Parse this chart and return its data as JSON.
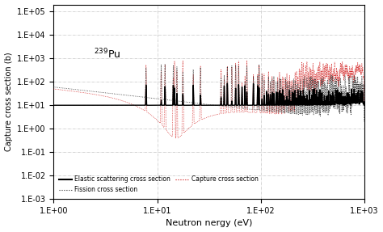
{
  "title_text": "$^{239}$Pu",
  "xlabel": "Neutron nergy (eV)",
  "ylabel": "Capture cross section (b)",
  "xlim": [
    1.0,
    1000.0
  ],
  "ylim": [
    0.001,
    200000.0
  ],
  "yticks": [
    0.001,
    0.01,
    0.1,
    1.0,
    10.0,
    100.0,
    1000.0,
    10000.0,
    100000.0
  ],
  "ytick_labels": [
    "1.E-03",
    "1.E-02",
    "1.E-01",
    "1.E+00",
    "1.E+01",
    "1.E+02",
    "1.E+03",
    "1.E+04",
    "1.E+05"
  ],
  "xticks": [
    1.0,
    10.0,
    100.0,
    1000.0
  ],
  "xtick_labels": [
    "1.E+00",
    "1.E+01",
    "1.E+02",
    "1.E+03"
  ],
  "elastic_color": "#000000",
  "fission_color": "#333333",
  "capture_color": "#cc0000",
  "background_color": "#ffffff",
  "grid_color": "#999999",
  "legend_elastic": "Elastic scattering cross section",
  "legend_fission": "Fission cross section",
  "legend_capture": "Capture cross section",
  "resonance_energies_low": [
    7.8,
    10.93,
    11.9,
    14.3,
    14.7,
    15.5,
    17.7,
    22.3,
    26.2,
    41.4,
    44.4,
    47.6,
    52.6,
    57.3,
    61.2,
    66.0,
    70.5,
    73.5,
    85.0,
    93.5,
    96.5
  ],
  "resonance_energies_high": [
    103.0,
    108.0,
    114.0,
    119.0,
    124.0,
    129.0,
    134.0,
    141.0,
    146.0,
    152.0,
    157.0,
    163.0,
    168.0,
    174.0,
    179.0,
    184.0,
    190.0,
    196.0,
    202.0,
    208.0,
    215.0,
    222.0,
    229.0,
    236.0,
    243.0,
    250.0,
    258.0,
    265.0,
    272.0,
    280.0,
    288.0,
    296.0,
    304.0,
    312.0,
    320.0,
    329.0,
    337.0,
    346.0,
    355.0,
    364.0,
    373.0,
    383.0,
    392.0,
    402.0,
    412.0,
    422.0,
    432.0,
    442.0,
    453.0,
    463.0,
    474.0,
    485.0,
    496.0,
    507.0,
    518.0,
    530.0,
    541.0,
    553.0,
    565.0,
    577.0,
    590.0,
    602.0,
    615.0,
    628.0,
    641.0,
    654.0,
    668.0,
    682.0,
    696.0,
    710.0,
    724.0,
    739.0,
    754.0,
    769.0,
    784.0,
    800.0,
    816.0,
    832.0,
    848.0,
    865.0,
    881.0,
    898.0,
    915.0,
    932.0,
    950.0,
    968.0,
    986.0
  ]
}
